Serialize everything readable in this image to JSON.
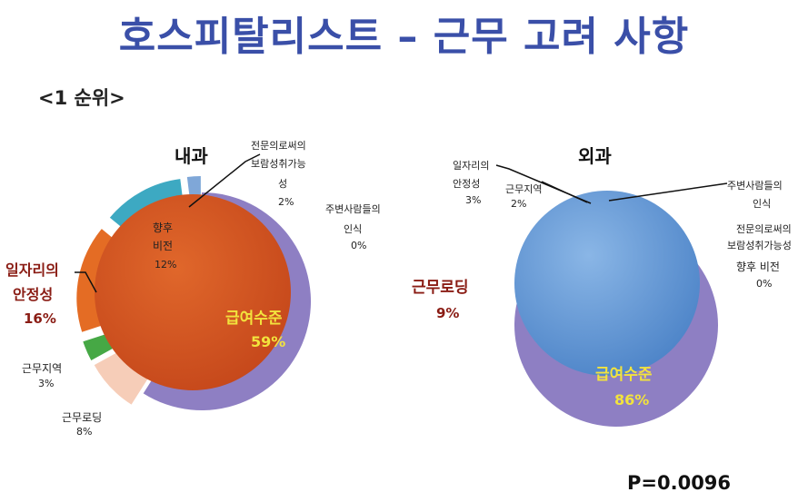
{
  "page": {
    "title": "호스피탈리스트 – 근무 고려 사항",
    "subtitle": "<1 순위>",
    "p_value": "P=0.0096"
  },
  "chart_data": [
    {
      "type": "pie",
      "title": "내과",
      "slices": [
        {
          "label": "급여수준",
          "value": 59,
          "value_label": "59%",
          "color": "#8e7fc3"
        },
        {
          "label": "근무로딩",
          "value": 8,
          "value_label": "8%",
          "color": "#f6cdb8"
        },
        {
          "label": "근무지역",
          "value": 3,
          "value_label": "3%",
          "color": "#46a845"
        },
        {
          "label": "일자리의 안정성",
          "value": 16,
          "value_label": "16%",
          "color": "#e46c24"
        },
        {
          "label": "향후 비전",
          "value": 12,
          "value_label": "12%",
          "color": "#3da9c2"
        },
        {
          "label": "전문의로써의 보람성취가능성",
          "value": 2,
          "value_label": "2%",
          "color": "#7fa7d8"
        },
        {
          "label": "주변사람들의 인식",
          "value": 0,
          "value_label": "0%",
          "color": "#cfcfcf"
        }
      ],
      "overlay_color": "#d2521c"
    },
    {
      "type": "pie",
      "title": "외과",
      "slices": [
        {
          "label": "급여수준",
          "value": 86,
          "value_label": "86%",
          "color": "#8e7fc3"
        },
        {
          "label": "근무로딩",
          "value": 9,
          "value_label": "9%",
          "color": "#f6cdb8"
        },
        {
          "label": "일자리의 안정성",
          "value": 3,
          "value_label": "3%",
          "color": "#e46c24"
        },
        {
          "label": "근무지역",
          "value": 2,
          "value_label": "2%",
          "color": "#46a845"
        },
        {
          "label": "주변사람들의 인식",
          "value": 0,
          "value_label": "",
          "color": "#cfcfcf"
        },
        {
          "label": "전문의로써의 보람성취가능성",
          "value": 0,
          "value_label": "",
          "color": "#7fa7d8"
        },
        {
          "label": "향후 비전",
          "value": 0,
          "value_label": "0%",
          "color": "#3da9c2"
        }
      ],
      "overlay_color": "#5b8fcf"
    }
  ]
}
